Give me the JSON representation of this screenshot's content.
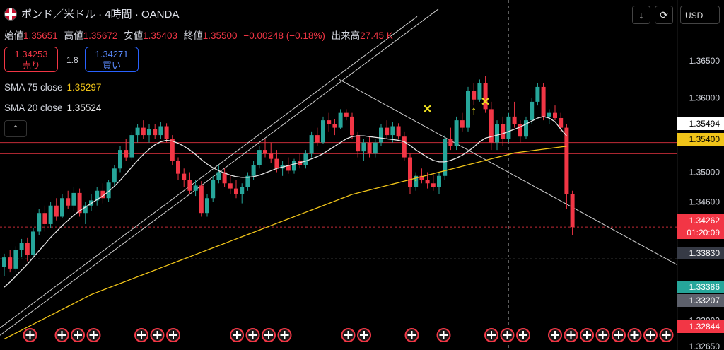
{
  "header": {
    "title": "ポンド／米ドル · 4時間 · OANDA"
  },
  "ohlc": {
    "open_label": "始値",
    "open": "1.35651",
    "high_label": "高値",
    "high": "1.35672",
    "low_label": "安値",
    "low": "1.35403",
    "close_label": "終値",
    "close": "1.35500",
    "change": "−0.00248 (−0.18%)",
    "volume_label": "出来高",
    "volume": "27.45 K"
  },
  "trade": {
    "sell_price": "1.34253",
    "sell_label": "売り",
    "spread": "1.8",
    "buy_price": "1.34271",
    "buy_label": "買い"
  },
  "indicators": {
    "sma75_label": "SMA 75 close",
    "sma75_value": "1.35297",
    "sma75_color": "#f0c419",
    "sma20_label": "SMA 20 close",
    "sma20_value": "1.35524",
    "sma20_color": "#e6e6e6"
  },
  "toolbar": {
    "currency": "USD",
    "download_icon": "↓",
    "refresh_icon": "⟳",
    "collapse_icon": "⌃"
  },
  "colors": {
    "up": "#26a69a",
    "down": "#f23645",
    "background": "#000000"
  },
  "chart_data": {
    "type": "candlestick",
    "ylim": [
      1.3265,
      1.3675
    ],
    "y_ticks": [
      "1.36500",
      "1.36000",
      "1.35000",
      "1.34600",
      "1.33000",
      "1.32650"
    ],
    "price_labels": [
      {
        "value": "1.35494",
        "bg": "#ffffff",
        "fg": "#000000"
      },
      {
        "value": "1.35400",
        "bg": "#f0c419",
        "fg": "#000000"
      },
      {
        "value": "1.34262",
        "bg": "#f23645",
        "fg": "#ffffff"
      },
      {
        "value": "01:20:09",
        "bg": "#f23645",
        "fg": "#ffffff"
      },
      {
        "value": "1.33830",
        "bg": "#363a45",
        "fg": "#ffffff"
      },
      {
        "value": "1.33386",
        "bg": "#26a69a",
        "fg": "#ffffff"
      },
      {
        "value": "1.33207",
        "bg": "#5d606b",
        "fg": "#ffffff"
      },
      {
        "value": "1.32844",
        "bg": "#f23645",
        "fg": "#ffffff"
      }
    ],
    "horizontal_lines": [
      1.354,
      1.3525,
      1.3426,
      1.3383
    ],
    "candles": [
      [
        1.3372,
        1.339,
        1.336,
        1.3385
      ],
      [
        1.3385,
        1.3395,
        1.3365,
        1.337
      ],
      [
        1.337,
        1.34,
        1.3365,
        1.3395
      ],
      [
        1.3395,
        1.341,
        1.3385,
        1.3405
      ],
      [
        1.3405,
        1.3412,
        1.338,
        1.3388
      ],
      [
        1.3388,
        1.3425,
        1.3385,
        1.342
      ],
      [
        1.342,
        1.345,
        1.3415,
        1.3445
      ],
      [
        1.3445,
        1.3455,
        1.342,
        1.343
      ],
      [
        1.343,
        1.346,
        1.3425,
        1.3455
      ],
      [
        1.3455,
        1.3465,
        1.3435,
        1.344
      ],
      [
        1.344,
        1.347,
        1.3438,
        1.3465
      ],
      [
        1.3465,
        1.3475,
        1.345,
        1.3455
      ],
      [
        1.3455,
        1.348,
        1.3448,
        1.3472
      ],
      [
        1.3472,
        1.3478,
        1.344,
        1.3445
      ],
      [
        1.3445,
        1.346,
        1.343,
        1.3455
      ],
      [
        1.3455,
        1.347,
        1.3448,
        1.3462
      ],
      [
        1.3462,
        1.348,
        1.3455,
        1.3475
      ],
      [
        1.3475,
        1.3485,
        1.3458,
        1.3465
      ],
      [
        1.3465,
        1.349,
        1.346,
        1.3486
      ],
      [
        1.3486,
        1.351,
        1.348,
        1.3505
      ],
      [
        1.3505,
        1.3535,
        1.35,
        1.353
      ],
      [
        1.353,
        1.3545,
        1.3515,
        1.352
      ],
      [
        1.352,
        1.3555,
        1.3515,
        1.355
      ],
      [
        1.355,
        1.3565,
        1.354,
        1.356
      ],
      [
        1.356,
        1.357,
        1.3545,
        1.355
      ],
      [
        1.355,
        1.3565,
        1.354,
        1.3558
      ],
      [
        1.3558,
        1.3565,
        1.3545,
        1.355
      ],
      [
        1.355,
        1.3568,
        1.3545,
        1.3562
      ],
      [
        1.3562,
        1.3566,
        1.354,
        1.3545
      ],
      [
        1.3545,
        1.355,
        1.351,
        1.3515
      ],
      [
        1.3515,
        1.352,
        1.349,
        1.3498
      ],
      [
        1.3498,
        1.3505,
        1.348,
        1.349
      ],
      [
        1.349,
        1.35,
        1.347,
        1.3475
      ],
      [
        1.3475,
        1.349,
        1.3468,
        1.3482
      ],
      [
        1.3482,
        1.3488,
        1.344,
        1.3445
      ],
      [
        1.3445,
        1.347,
        1.344,
        1.3465
      ],
      [
        1.3465,
        1.3495,
        1.346,
        1.349
      ],
      [
        1.349,
        1.351,
        1.3485,
        1.35
      ],
      [
        1.35,
        1.3505,
        1.348,
        1.3485
      ],
      [
        1.3485,
        1.3495,
        1.347,
        1.3478
      ],
      [
        1.3478,
        1.349,
        1.3465,
        1.347
      ],
      [
        1.347,
        1.3485,
        1.3458,
        1.348
      ],
      [
        1.348,
        1.35,
        1.3475,
        1.3495
      ],
      [
        1.3495,
        1.3515,
        1.349,
        1.351
      ],
      [
        1.351,
        1.3535,
        1.3505,
        1.353
      ],
      [
        1.353,
        1.3545,
        1.352,
        1.3525
      ],
      [
        1.3525,
        1.354,
        1.3512,
        1.3518
      ],
      [
        1.3518,
        1.353,
        1.35,
        1.3505
      ],
      [
        1.3505,
        1.3515,
        1.3495,
        1.351
      ],
      [
        1.351,
        1.352,
        1.3498,
        1.3502
      ],
      [
        1.3502,
        1.3518,
        1.3498,
        1.3515
      ],
      [
        1.3515,
        1.3525,
        1.3505,
        1.351
      ],
      [
        1.351,
        1.353,
        1.3505,
        1.3525
      ],
      [
        1.3525,
        1.3555,
        1.352,
        1.355
      ],
      [
        1.355,
        1.356,
        1.3535,
        1.354
      ],
      [
        1.354,
        1.3575,
        1.3538,
        1.357
      ],
      [
        1.357,
        1.358,
        1.3555,
        1.3565
      ],
      [
        1.3565,
        1.3572,
        1.355,
        1.356
      ],
      [
        1.356,
        1.3585,
        1.3558,
        1.358
      ],
      [
        1.358,
        1.3585,
        1.357,
        1.3575
      ],
      [
        1.3575,
        1.358,
        1.3545,
        1.355
      ],
      [
        1.355,
        1.3555,
        1.352,
        1.3528
      ],
      [
        1.3528,
        1.3545,
        1.3515,
        1.354
      ],
      [
        1.354,
        1.3548,
        1.352,
        1.3525
      ],
      [
        1.3525,
        1.3545,
        1.352,
        1.354
      ],
      [
        1.354,
        1.3565,
        1.3535,
        1.356
      ],
      [
        1.356,
        1.357,
        1.3545,
        1.355
      ],
      [
        1.355,
        1.3568,
        1.354,
        1.3562
      ],
      [
        1.3562,
        1.3566,
        1.3545,
        1.3548
      ],
      [
        1.3548,
        1.3555,
        1.3515,
        1.352
      ],
      [
        1.352,
        1.3525,
        1.347,
        1.348
      ],
      [
        1.348,
        1.35,
        1.3475,
        1.3495
      ],
      [
        1.3495,
        1.3505,
        1.3485,
        1.349
      ],
      [
        1.349,
        1.35,
        1.3478,
        1.3485
      ],
      [
        1.3485,
        1.3498,
        1.3475,
        1.348
      ],
      [
        1.348,
        1.35,
        1.347,
        1.3495
      ],
      [
        1.3495,
        1.355,
        1.349,
        1.3545
      ],
      [
        1.3545,
        1.356,
        1.353,
        1.3535
      ],
      [
        1.3535,
        1.3575,
        1.353,
        1.357
      ],
      [
        1.357,
        1.358,
        1.3555,
        1.356
      ],
      [
        1.356,
        1.3615,
        1.3555,
        1.361
      ],
      [
        1.361,
        1.362,
        1.359,
        1.3598
      ],
      [
        1.3598,
        1.3625,
        1.3595,
        1.362
      ],
      [
        1.362,
        1.363,
        1.358,
        1.3585
      ],
      [
        1.3585,
        1.3595,
        1.353,
        1.354
      ],
      [
        1.354,
        1.357,
        1.353,
        1.3565
      ],
      [
        1.3565,
        1.3575,
        1.3535,
        1.3545
      ],
      [
        1.3545,
        1.358,
        1.354,
        1.3575
      ],
      [
        1.3575,
        1.3595,
        1.356,
        1.3565
      ],
      [
        1.3565,
        1.357,
        1.354,
        1.3548
      ],
      [
        1.3548,
        1.3575,
        1.3545,
        1.357
      ],
      [
        1.357,
        1.36,
        1.3565,
        1.3595
      ],
      [
        1.3595,
        1.362,
        1.359,
        1.3615
      ],
      [
        1.3615,
        1.362,
        1.357,
        1.3575
      ],
      [
        1.3575,
        1.3585,
        1.3565,
        1.358
      ],
      [
        1.358,
        1.359,
        1.357,
        1.3573
      ],
      [
        1.3573,
        1.358,
        1.3555,
        1.356
      ],
      [
        1.356,
        1.3565,
        1.345,
        1.347
      ],
      [
        1.347,
        1.3475,
        1.3415,
        1.3426
      ]
    ],
    "sma20": [
      1.3345,
      1.3352,
      1.336,
      1.3368,
      1.3376,
      1.3385,
      1.3394,
      1.3403,
      1.3412,
      1.342,
      1.3428,
      1.3435,
      1.3442,
      1.3448,
      1.3453,
      1.3458,
      1.3463,
      1.3468,
      1.3474,
      1.3481,
      1.3489,
      1.3498,
      1.3507,
      1.3516,
      1.3524,
      1.3531,
      1.3537,
      1.3541,
      1.3543,
      1.3542,
      1.3539,
      1.3535,
      1.353,
      1.3524,
      1.3517,
      1.3511,
      1.3506,
      1.3502,
      1.3499,
      1.3496,
      1.3494,
      1.3493,
      1.3493,
      1.3494,
      1.3496,
      1.3499,
      1.3502,
      1.3505,
      1.3507,
      1.3509,
      1.3511,
      1.3513,
      1.3515,
      1.3518,
      1.3521,
      1.3525,
      1.353,
      1.3535,
      1.354,
      1.3545,
      1.3548,
      1.3549,
      1.3549,
      1.3548,
      1.3547,
      1.3546,
      1.3545,
      1.3544,
      1.3543,
      1.3541,
      1.3536,
      1.353,
      1.3525,
      1.352,
      1.3516,
      1.3514,
      1.3514,
      1.3516,
      1.3519,
      1.3523,
      1.3528,
      1.3534,
      1.3541,
      1.3546,
      1.3548,
      1.355,
      1.3552,
      1.3555,
      1.3558,
      1.3561,
      1.3565,
      1.3569,
      1.3573,
      1.3575,
      1.3573,
      1.3568,
      1.3558,
      1.3549
    ],
    "sma75": [
      1.3275,
      1.3279,
      1.3283,
      1.3287,
      1.3291,
      1.3295,
      1.3299,
      1.3303,
      1.3307,
      1.3311,
      1.3315,
      1.3319,
      1.3323,
      1.3327,
      1.3331,
      1.3335,
      1.3338,
      1.3341,
      1.3344,
      1.3347,
      1.335,
      1.3353,
      1.3356,
      1.3359,
      1.3362,
      1.3365,
      1.3368,
      1.3371,
      1.3374,
      1.3377,
      1.338,
      1.3383,
      1.3386,
      1.3389,
      1.3392,
      1.3395,
      1.3398,
      1.3401,
      1.3404,
      1.3407,
      1.341,
      1.3413,
      1.3416,
      1.3419,
      1.3422,
      1.3425,
      1.3428,
      1.3431,
      1.3434,
      1.3437,
      1.344,
      1.3443,
      1.3446,
      1.3449,
      1.3452,
      1.3455,
      1.3458,
      1.3461,
      1.3464,
      1.3467,
      1.347,
      1.3472,
      1.3474,
      1.3476,
      1.3478,
      1.348,
      1.3482,
      1.3484,
      1.3486,
      1.3488,
      1.349,
      1.3492,
      1.3494,
      1.3496,
      1.3498,
      1.35,
      1.3502,
      1.3504,
      1.3506,
      1.3508,
      1.351,
      1.3512,
      1.3514,
      1.3516,
      1.3518,
      1.352,
      1.3522,
      1.3524,
      1.3526,
      1.3527,
      1.3528,
      1.3529,
      1.353,
      1.3531,
      1.3532,
      1.3533,
      1.3534,
      1.3535
    ],
    "trendlines": [
      {
        "x1": 0,
        "y1": 1.328,
        "x2": 620,
        "y2": 1.372
      },
      {
        "x1": 0,
        "y1": 1.329,
        "x2": 590,
        "y2": 1.371
      },
      {
        "x1": 480,
        "y1": 1.3625,
        "x2": 958,
        "y2": 1.3375
      }
    ],
    "signals": [
      {
        "candle": 73,
        "type": "x",
        "price": 1.358
      },
      {
        "candle": 83,
        "type": "x",
        "price": 1.359
      },
      {
        "candle": 71,
        "type": "down",
        "price": 1.3488
      },
      {
        "candle": 81,
        "type": "up",
        "price": 1.3578
      }
    ],
    "event_flags": [
      1,
      3,
      4,
      5,
      8,
      9,
      10,
      14,
      15,
      16,
      17,
      21,
      22,
      25,
      27,
      30,
      31,
      32,
      34,
      35,
      36,
      37,
      38,
      39,
      40,
      41
    ]
  }
}
